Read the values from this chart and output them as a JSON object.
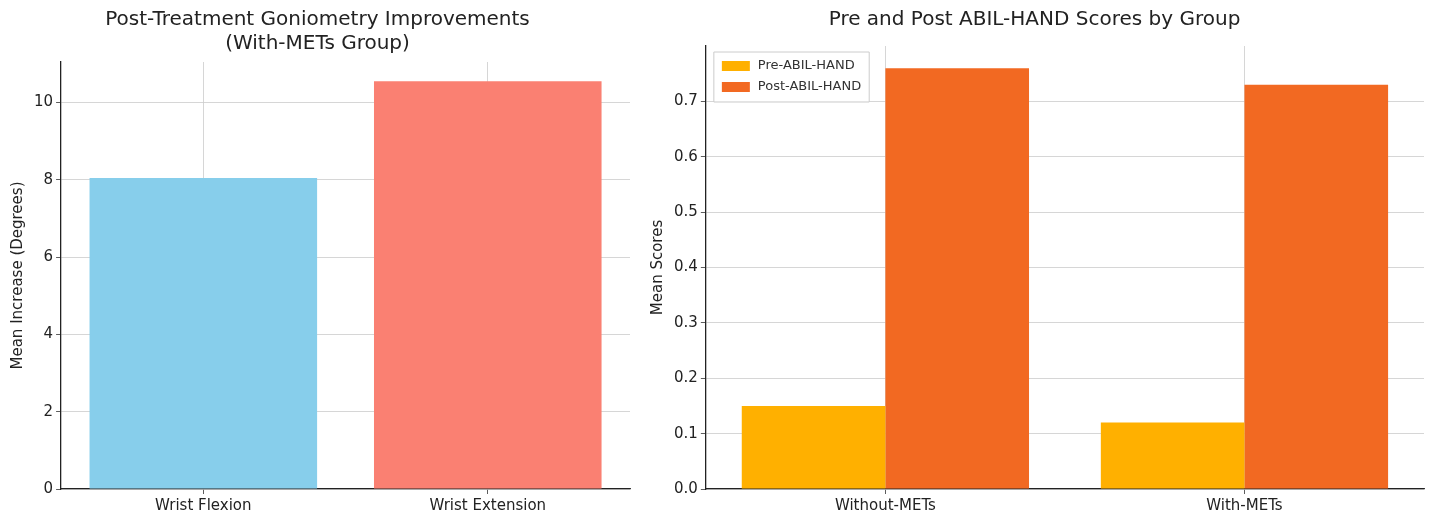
{
  "chart_data": [
    {
      "type": "bar",
      "title": "Post-Treatment Goniometry Improvements\n(With-METs Group)",
      "ylabel": "Mean Increase (Degrees)",
      "categories": [
        "Wrist Flexion",
        "Wrist Extension"
      ],
      "values": [
        8.05,
        10.55
      ],
      "colors": [
        "#87ceeb",
        "#fa8072"
      ],
      "ylim": [
        0,
        11.05
      ],
      "yticks": [
        0,
        2,
        4,
        6,
        8,
        10
      ],
      "grid": true
    },
    {
      "type": "bar",
      "title": "Pre and Post ABIL-HAND Scores by Group",
      "ylabel": "Mean Scores",
      "categories": [
        "Without-METs",
        "With-METs"
      ],
      "series": [
        {
          "name": "Pre-ABIL-HAND",
          "color": "#ffb000",
          "values": [
            0.15,
            0.12
          ]
        },
        {
          "name": "Post-ABIL-HAND",
          "color": "#f26922",
          "values": [
            0.76,
            0.73
          ]
        }
      ],
      "ylim": [
        0,
        0.8
      ],
      "yticks": [
        {
          "value": 0,
          "label": "0.0"
        },
        0.1,
        0.2,
        0.3,
        0.4,
        0.5,
        0.6,
        0.7
      ],
      "grid": true,
      "legend": "top left"
    }
  ]
}
